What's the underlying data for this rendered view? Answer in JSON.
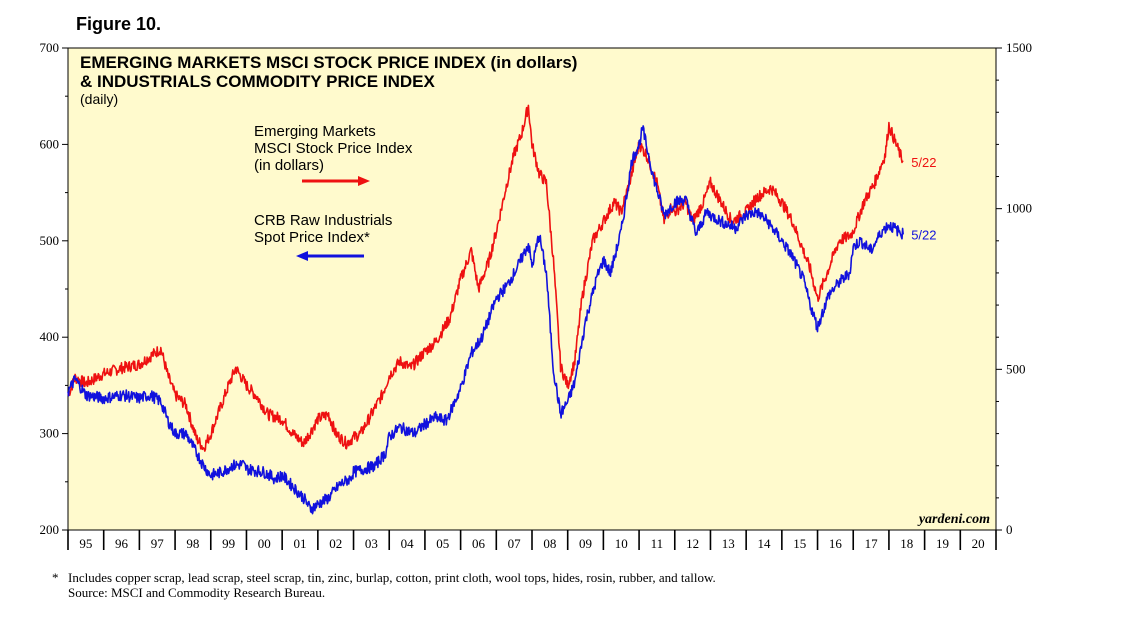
{
  "figure_label": "Figure 10.",
  "chart_data": {
    "type": "line",
    "title": "EMERGING MARKETS MSCI STOCK PRICE INDEX (in dollars)",
    "title_line2": "& INDUSTRIALS COMMODITY PRICE INDEX",
    "subtitle": "(daily)",
    "x_range": [
      1995,
      2021
    ],
    "x_tick_labels": [
      "95",
      "96",
      "97",
      "98",
      "99",
      "00",
      "01",
      "02",
      "03",
      "04",
      "05",
      "06",
      "07",
      "08",
      "09",
      "10",
      "11",
      "12",
      "13",
      "14",
      "15",
      "16",
      "17",
      "18",
      "19",
      "20"
    ],
    "y_left": {
      "range": [
        200,
        700
      ],
      "ticks": [
        200,
        300,
        400,
        500,
        600,
        700
      ]
    },
    "y_right": {
      "range": [
        0,
        1500
      ],
      "ticks": [
        0,
        500,
        1000,
        1500
      ]
    },
    "grid": false,
    "series": [
      {
        "name": "Emerging Markets MSCI Stock Price Index (in dollars)",
        "axis": "left",
        "color": "#ee1111",
        "annotation": [
          "Emerging Markets",
          "MSCI Stock Price Index",
          "(in dollars)"
        ],
        "arrow": "right",
        "end_label": "5/22",
        "points": [
          [
            1995.0,
            340
          ],
          [
            1995.2,
            358
          ],
          [
            1995.5,
            352
          ],
          [
            1996.0,
            362
          ],
          [
            1996.5,
            368
          ],
          [
            1997.0,
            372
          ],
          [
            1997.3,
            380
          ],
          [
            1997.6,
            388
          ],
          [
            1997.8,
            360
          ],
          [
            1998.0,
            340
          ],
          [
            1998.3,
            330
          ],
          [
            1998.6,
            295
          ],
          [
            1998.8,
            285
          ],
          [
            1999.0,
            300
          ],
          [
            1999.3,
            330
          ],
          [
            1999.5,
            350
          ],
          [
            1999.7,
            368
          ],
          [
            2000.0,
            350
          ],
          [
            2000.3,
            338
          ],
          [
            2000.6,
            320
          ],
          [
            2001.0,
            315
          ],
          [
            2001.3,
            300
          ],
          [
            2001.6,
            290
          ],
          [
            2001.8,
            302
          ],
          [
            2002.0,
            315
          ],
          [
            2002.3,
            320
          ],
          [
            2002.5,
            300
          ],
          [
            2002.8,
            290
          ],
          [
            2003.0,
            296
          ],
          [
            2003.2,
            300
          ],
          [
            2003.5,
            320
          ],
          [
            2003.8,
            340
          ],
          [
            2004.0,
            360
          ],
          [
            2004.3,
            375
          ],
          [
            2004.6,
            368
          ],
          [
            2005.0,
            385
          ],
          [
            2005.3,
            395
          ],
          [
            2005.7,
            420
          ],
          [
            2006.0,
            460
          ],
          [
            2006.3,
            490
          ],
          [
            2006.5,
            450
          ],
          [
            2006.8,
            480
          ],
          [
            2007.0,
            510
          ],
          [
            2007.3,
            560
          ],
          [
            2007.5,
            590
          ],
          [
            2007.7,
            610
          ],
          [
            2007.9,
            640
          ],
          [
            2008.0,
            600
          ],
          [
            2008.2,
            570
          ],
          [
            2008.4,
            560
          ],
          [
            2008.6,
            480
          ],
          [
            2008.8,
            370
          ],
          [
            2009.0,
            350
          ],
          [
            2009.2,
            375
          ],
          [
            2009.4,
            440
          ],
          [
            2009.7,
            500
          ],
          [
            2010.0,
            520
          ],
          [
            2010.3,
            540
          ],
          [
            2010.5,
            530
          ],
          [
            2010.8,
            570
          ],
          [
            2011.0,
            600
          ],
          [
            2011.2,
            590
          ],
          [
            2011.5,
            560
          ],
          [
            2011.7,
            520
          ],
          [
            2011.9,
            535
          ],
          [
            2012.0,
            530
          ],
          [
            2012.3,
            540
          ],
          [
            2012.5,
            520
          ],
          [
            2012.8,
            540
          ],
          [
            2013.0,
            560
          ],
          [
            2013.3,
            540
          ],
          [
            2013.6,
            520
          ],
          [
            2014.0,
            530
          ],
          [
            2014.3,
            545
          ],
          [
            2014.7,
            555
          ],
          [
            2015.0,
            540
          ],
          [
            2015.3,
            520
          ],
          [
            2015.6,
            490
          ],
          [
            2015.8,
            470
          ],
          [
            2016.0,
            440
          ],
          [
            2016.3,
            470
          ],
          [
            2016.6,
            500
          ],
          [
            2016.9,
            505
          ],
          [
            2017.0,
            510
          ],
          [
            2017.3,
            540
          ],
          [
            2017.6,
            560
          ],
          [
            2017.9,
            590
          ],
          [
            2018.0,
            620
          ],
          [
            2018.2,
            600
          ],
          [
            2018.4,
            582
          ]
        ]
      },
      {
        "name": "CRB Raw Industrials Spot Price Index*",
        "axis": "right",
        "color": "#1111dd",
        "annotation": [
          "CRB Raw Industrials",
          "Spot Price Index*"
        ],
        "arrow": "left",
        "end_label": "5/22",
        "points": [
          [
            1995.0,
            430
          ],
          [
            1995.2,
            470
          ],
          [
            1995.5,
            420
          ],
          [
            1996.0,
            410
          ],
          [
            1996.5,
            420
          ],
          [
            1997.0,
            410
          ],
          [
            1997.3,
            420
          ],
          [
            1997.6,
            400
          ],
          [
            1997.8,
            340
          ],
          [
            1998.0,
            300
          ],
          [
            1998.3,
            300
          ],
          [
            1998.6,
            240
          ],
          [
            1998.8,
            200
          ],
          [
            1999.0,
            170
          ],
          [
            1999.3,
            180
          ],
          [
            1999.6,
            200
          ],
          [
            1999.9,
            205
          ],
          [
            2000.0,
            190
          ],
          [
            2000.5,
            180
          ],
          [
            2000.8,
            160
          ],
          [
            2001.0,
            170
          ],
          [
            2001.3,
            135
          ],
          [
            2001.6,
            100
          ],
          [
            2001.8,
            65
          ],
          [
            2002.0,
            80
          ],
          [
            2002.3,
            100
          ],
          [
            2002.6,
            140
          ],
          [
            2002.9,
            160
          ],
          [
            2003.0,
            180
          ],
          [
            2003.3,
            190
          ],
          [
            2003.6,
            200
          ],
          [
            2003.9,
            240
          ],
          [
            2004.0,
            290
          ],
          [
            2004.3,
            320
          ],
          [
            2004.7,
            300
          ],
          [
            2005.0,
            330
          ],
          [
            2005.3,
            350
          ],
          [
            2005.6,
            340
          ],
          [
            2006.0,
            440
          ],
          [
            2006.3,
            550
          ],
          [
            2006.6,
            600
          ],
          [
            2007.0,
            720
          ],
          [
            2007.3,
            760
          ],
          [
            2007.6,
            820
          ],
          [
            2007.9,
            890
          ],
          [
            2008.0,
            820
          ],
          [
            2008.2,
            920
          ],
          [
            2008.4,
            800
          ],
          [
            2008.6,
            500
          ],
          [
            2008.8,
            360
          ],
          [
            2009.0,
            400
          ],
          [
            2009.2,
            460
          ],
          [
            2009.5,
            650
          ],
          [
            2009.8,
            780
          ],
          [
            2010.0,
            840
          ],
          [
            2010.2,
            800
          ],
          [
            2010.5,
            930
          ],
          [
            2010.8,
            1150
          ],
          [
            2011.0,
            1200
          ],
          [
            2011.1,
            1250
          ],
          [
            2011.4,
            1100
          ],
          [
            2011.7,
            980
          ],
          [
            2012.0,
            1020
          ],
          [
            2012.3,
            1030
          ],
          [
            2012.6,
            920
          ],
          [
            2012.9,
            990
          ],
          [
            2013.0,
            980
          ],
          [
            2013.3,
            960
          ],
          [
            2013.7,
            940
          ],
          [
            2014.0,
            980
          ],
          [
            2014.3,
            990
          ],
          [
            2014.6,
            960
          ],
          [
            2015.0,
            900
          ],
          [
            2015.3,
            850
          ],
          [
            2015.6,
            780
          ],
          [
            2015.8,
            700
          ],
          [
            2016.0,
            630
          ],
          [
            2016.3,
            730
          ],
          [
            2016.6,
            770
          ],
          [
            2016.9,
            800
          ],
          [
            2017.0,
            880
          ],
          [
            2017.2,
            900
          ],
          [
            2017.5,
            870
          ],
          [
            2017.8,
            930
          ],
          [
            2018.0,
            950
          ],
          [
            2018.2,
            935
          ],
          [
            2018.4,
            920
          ]
        ]
      }
    ],
    "brand": "yardeni.com",
    "footnote": "Includes copper scrap, lead scrap, steel scrap, tin, zinc, burlap, cotton, print cloth, wool tops, hides, rosin, rubber, and tallow.",
    "footnote_marker": "*",
    "source": "Source: MSCI and Commodity Research Bureau."
  }
}
